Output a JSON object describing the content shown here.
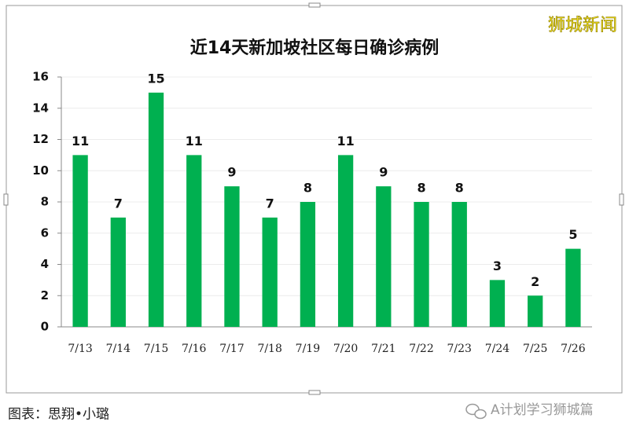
{
  "chart_data": {
    "type": "bar",
    "title": "近14天新加坡社区每日确诊病例",
    "categories": [
      "7/13",
      "7/14",
      "7/15",
      "7/16",
      "7/17",
      "7/18",
      "7/19",
      "7/20",
      "7/21",
      "7/22",
      "7/23",
      "7/24",
      "7/25",
      "7/26"
    ],
    "values": [
      11,
      7,
      15,
      11,
      9,
      7,
      8,
      11,
      9,
      8,
      8,
      3,
      2,
      5
    ],
    "color": "#00b050",
    "ylim": [
      0,
      16
    ],
    "yticks": [
      0,
      2,
      4,
      6,
      8,
      10,
      12,
      14,
      16
    ],
    "grid": true
  },
  "watermark": "狮城新闻",
  "caption": "图表：思翔•小璐",
  "source": "A计划学习狮城篇"
}
